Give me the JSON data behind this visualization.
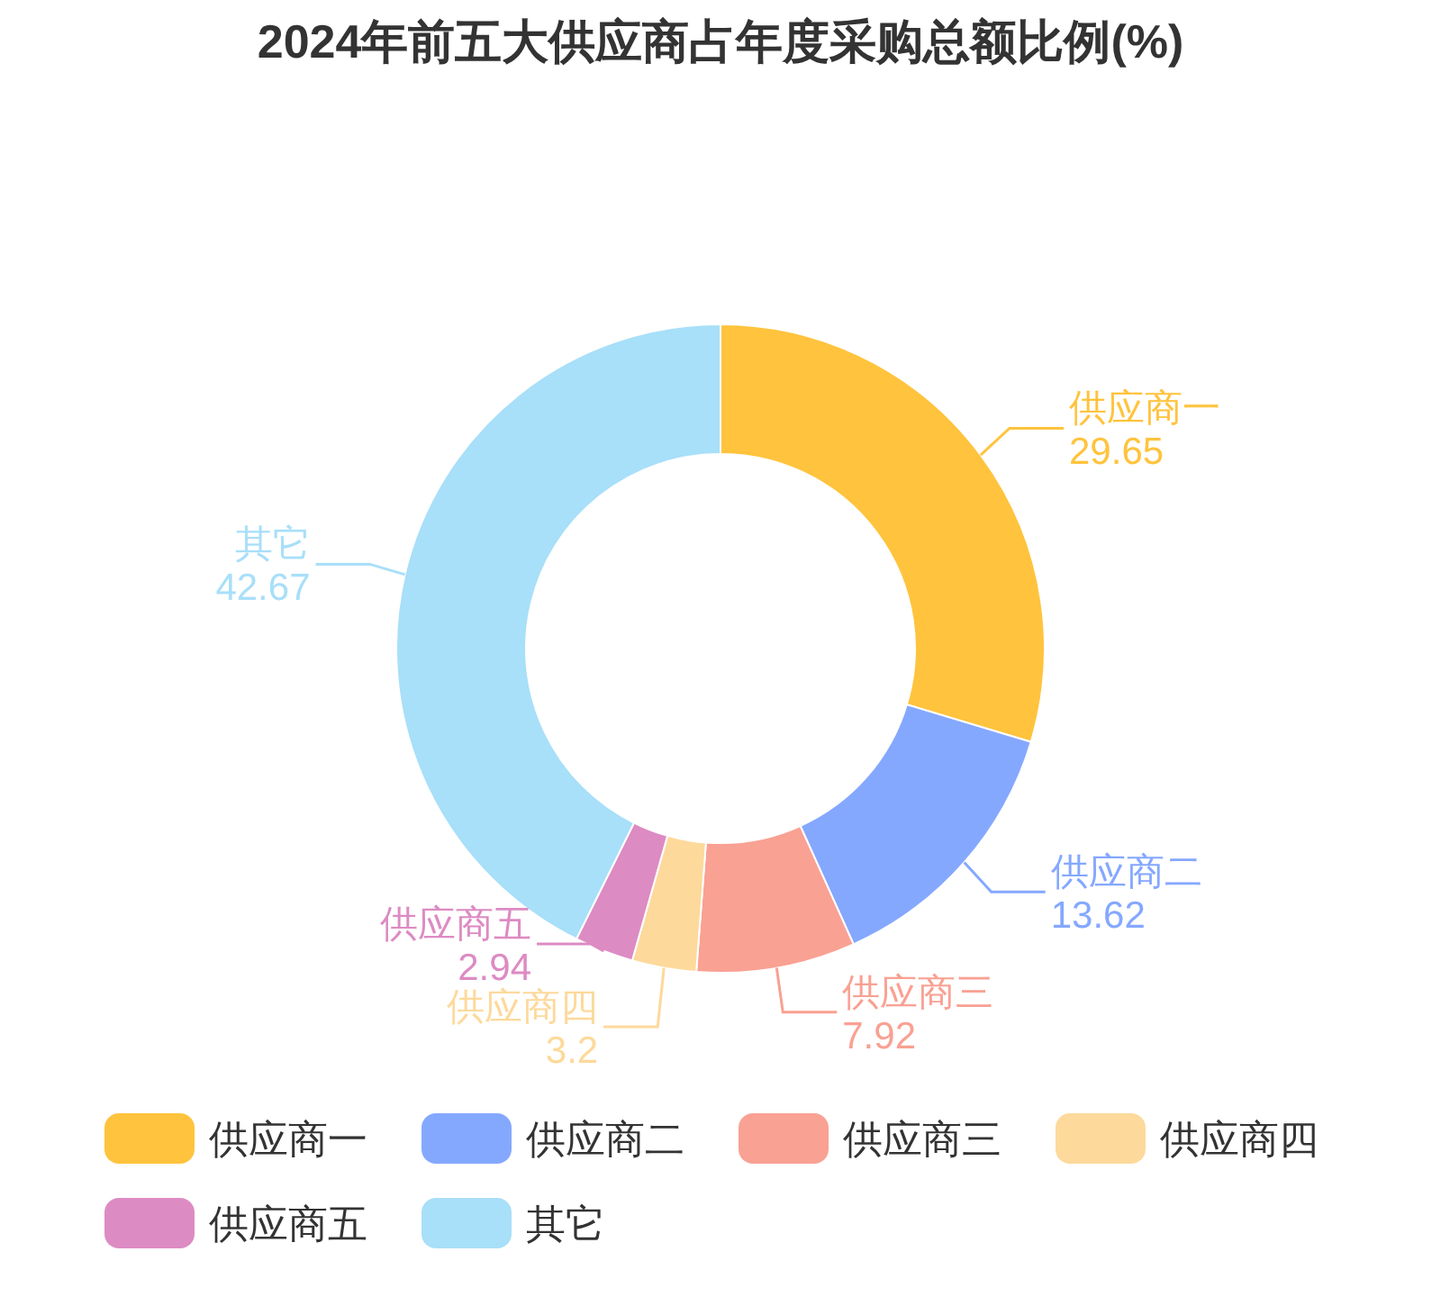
{
  "chart_data": {
    "type": "donut",
    "title": "2024年前五大供应商占年度采购总额比例(%)",
    "categories": [
      "供应商一",
      "供应商二",
      "供应商三",
      "供应商四",
      "供应商五",
      "其它"
    ],
    "values": [
      29.65,
      13.62,
      7.92,
      3.2,
      2.94,
      42.67
    ],
    "colors": [
      "#ffc33d",
      "#85a8ff",
      "#f9a193",
      "#fdd99b",
      "#dd8bc3",
      "#a8dff9"
    ],
    "data_labels": true,
    "legend": "bottom"
  }
}
